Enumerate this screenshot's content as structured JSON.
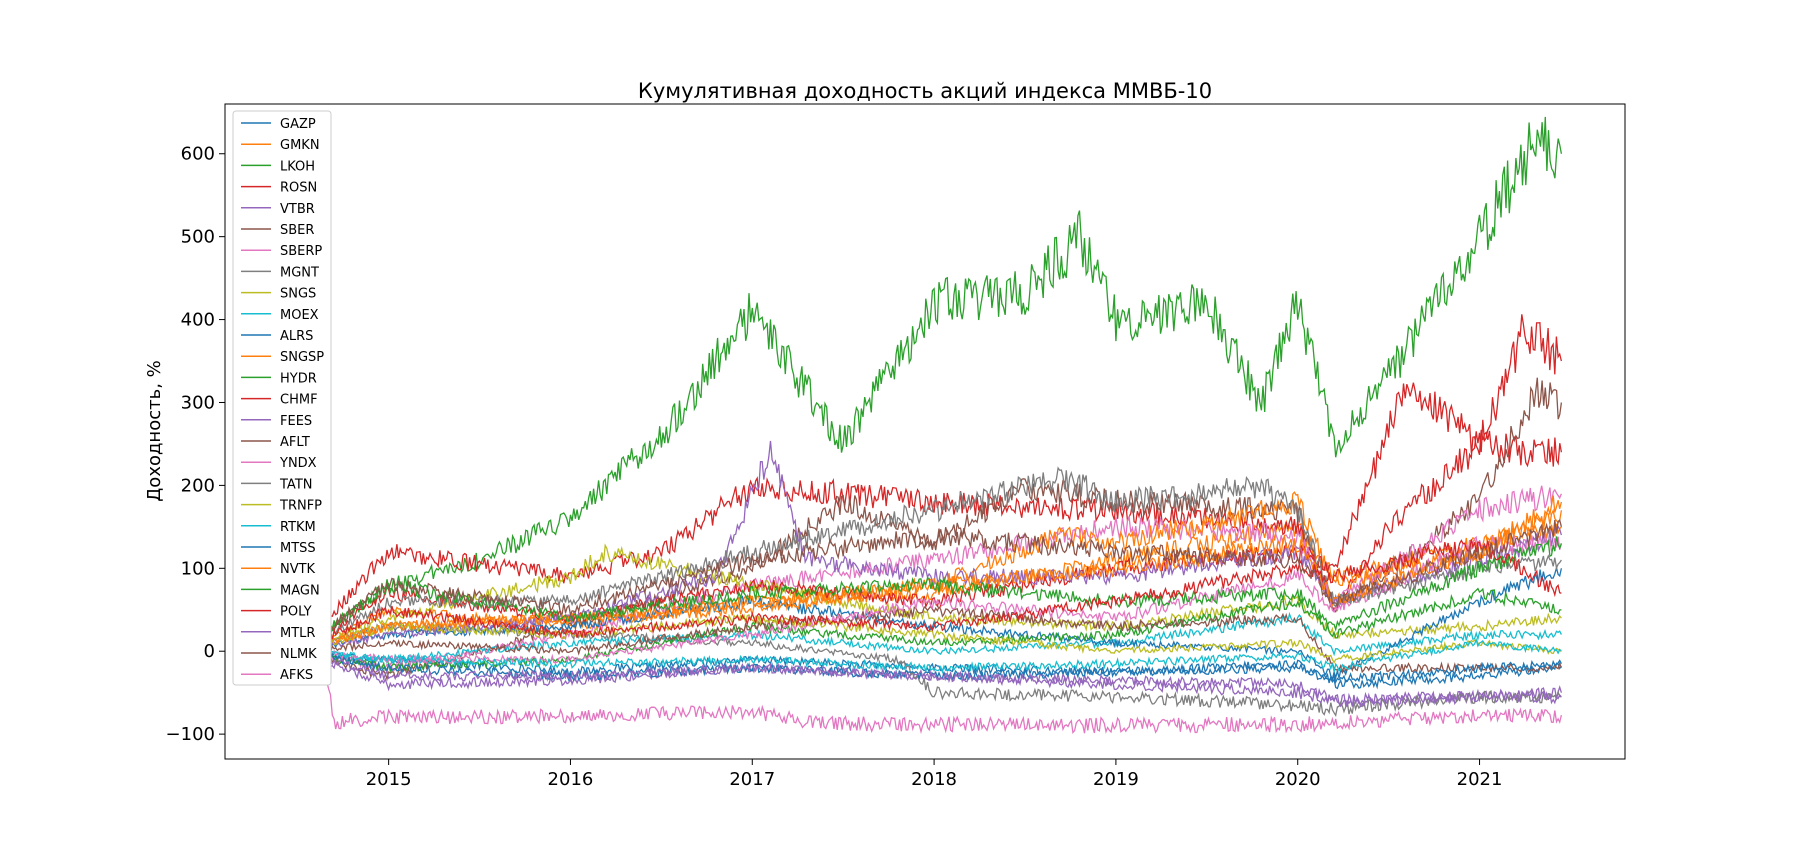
{
  "chart_data": {
    "type": "line",
    "title": "Кумулятивная доходность акций индекса ММВБ-10",
    "xlabel": "",
    "ylabel": "Доходность, %",
    "xlim": [
      2014.1,
      2021.8
    ],
    "ylim": [
      -130,
      660
    ],
    "x_ticks": [
      2015,
      2016,
      2017,
      2018,
      2019,
      2020,
      2021
    ],
    "x_tick_labels": [
      "2015",
      "2016",
      "2017",
      "2018",
      "2019",
      "2020",
      "2021"
    ],
    "y_ticks": [
      -100,
      0,
      100,
      200,
      300,
      400,
      500,
      600
    ],
    "y_tick_labels": [
      "−100",
      "0",
      "100",
      "200",
      "300",
      "400",
      "500",
      "600"
    ],
    "grid": false,
    "legend_position": "upper-left",
    "series": [
      {
        "name": "GAZP",
        "color": "#1f77b4",
        "x": [
          2014.5,
          2015.0,
          2016.0,
          2017.0,
          2018.0,
          2019.0,
          2020.0,
          2020.2,
          2021.0,
          2021.45
        ],
        "y": [
          0,
          -10,
          -25,
          -10,
          -20,
          -25,
          -15,
          -40,
          -30,
          -18
        ]
      },
      {
        "name": "GMKN",
        "color": "#ff7f0e",
        "x": [
          2014.5,
          2015.0,
          2016.0,
          2017.0,
          2018.0,
          2019.0,
          2020.0,
          2020.2,
          2021.0,
          2021.45
        ],
        "y": [
          0,
          50,
          30,
          60,
          70,
          110,
          150,
          90,
          130,
          150
        ]
      },
      {
        "name": "LKOH",
        "color": "#2ca02c",
        "x": [
          2014.5,
          2015.0,
          2015.5,
          2016.0,
          2016.5,
          2017.0,
          2017.5,
          2018.0,
          2018.5,
          2018.8,
          2019.0,
          2019.5,
          2019.8,
          2020.0,
          2020.2,
          2020.5,
          2021.0,
          2021.3,
          2021.45
        ],
        "y": [
          0,
          80,
          110,
          160,
          260,
          410,
          250,
          420,
          430,
          500,
          400,
          420,
          300,
          420,
          250,
          330,
          500,
          620,
          600
        ]
      },
      {
        "name": "ROSN",
        "color": "#d62728",
        "x": [
          2014.5,
          2015.0,
          2016.0,
          2016.5,
          2017.0,
          2018.0,
          2019.0,
          2020.0,
          2020.2,
          2020.5,
          2021.0,
          2021.3,
          2021.45
        ],
        "y": [
          0,
          120,
          90,
          120,
          200,
          180,
          170,
          150,
          50,
          150,
          250,
          240,
          240
        ]
      },
      {
        "name": "VTBR",
        "color": "#9467bd",
        "x": [
          2014.5,
          2015.0,
          2016.0,
          2017.0,
          2018.0,
          2019.0,
          2020.0,
          2020.2,
          2021.0,
          2021.45
        ],
        "y": [
          0,
          -40,
          -35,
          -20,
          -30,
          -35,
          -40,
          -60,
          -55,
          -50
        ]
      },
      {
        "name": "SBER",
        "color": "#8c564b",
        "x": [
          2014.5,
          2015.0,
          2016.0,
          2017.0,
          2017.5,
          2018.0,
          2018.5,
          2019.0,
          2020.0,
          2020.2,
          2021.0,
          2021.3,
          2021.45
        ],
        "y": [
          0,
          -30,
          30,
          100,
          180,
          130,
          200,
          180,
          170,
          50,
          180,
          310,
          300
        ]
      },
      {
        "name": "SBERP",
        "color": "#e377c2",
        "x": [
          2014.5,
          2015.0,
          2016.0,
          2017.0,
          2018.0,
          2019.0,
          2020.0,
          2020.2,
          2021.0,
          2021.45
        ],
        "y": [
          0,
          -20,
          20,
          80,
          110,
          150,
          140,
          60,
          170,
          190
        ]
      },
      {
        "name": "MGNT",
        "color": "#7f7f7f",
        "x": [
          2014.5,
          2015.0,
          2016.0,
          2017.0,
          2017.8,
          2018.0,
          2019.0,
          2020.0,
          2020.2,
          2021.0,
          2021.45
        ],
        "y": [
          0,
          30,
          20,
          10,
          -10,
          -50,
          -55,
          -65,
          -70,
          -55,
          -55
        ]
      },
      {
        "name": "SNGS",
        "color": "#bcbd22",
        "x": [
          2014.5,
          2015.0,
          2016.0,
          2016.2,
          2017.0,
          2018.0,
          2019.0,
          2020.0,
          2020.2,
          2021.0,
          2021.45
        ],
        "y": [
          0,
          40,
          90,
          120,
          80,
          40,
          30,
          60,
          20,
          30,
          40
        ]
      },
      {
        "name": "MOEX",
        "color": "#17becf",
        "x": [
          2014.5,
          2015.0,
          2016.0,
          2017.0,
          2018.0,
          2019.0,
          2020.0,
          2020.2,
          2021.0,
          2021.45
        ],
        "y": [
          0,
          -10,
          10,
          20,
          0,
          10,
          40,
          0,
          20,
          20
        ]
      },
      {
        "name": "ALRS",
        "color": "#1f77b4",
        "x": [
          2014.5,
          2015.0,
          2016.0,
          2017.0,
          2018.0,
          2019.0,
          2020.0,
          2020.2,
          2021.0,
          2021.45
        ],
        "y": [
          0,
          20,
          30,
          60,
          30,
          10,
          0,
          -30,
          60,
          100
        ]
      },
      {
        "name": "SNGSP",
        "color": "#ff7f0e",
        "x": [
          2014.5,
          2015.0,
          2016.0,
          2017.0,
          2018.0,
          2018.7,
          2019.0,
          2020.0,
          2020.2,
          2021.0,
          2021.45
        ],
        "y": [
          0,
          30,
          40,
          60,
          80,
          140,
          130,
          180,
          80,
          120,
          180
        ]
      },
      {
        "name": "HYDR",
        "color": "#2ca02c",
        "x": [
          2014.5,
          2015.0,
          2016.0,
          2017.0,
          2018.0,
          2019.0,
          2020.0,
          2020.2,
          2021.0,
          2021.45
        ],
        "y": [
          0,
          -20,
          -10,
          30,
          10,
          20,
          60,
          20,
          70,
          50
        ]
      },
      {
        "name": "CHMF",
        "color": "#d62728",
        "x": [
          2014.5,
          2015.0,
          2016.0,
          2017.0,
          2018.0,
          2019.0,
          2020.0,
          2020.2,
          2020.6,
          2021.0,
          2021.25,
          2021.45
        ],
        "y": [
          0,
          70,
          40,
          80,
          60,
          100,
          120,
          100,
          320,
          250,
          390,
          350
        ]
      },
      {
        "name": "FEES",
        "color": "#9467bd",
        "x": [
          2014.5,
          2015.0,
          2016.0,
          2016.8,
          2017.1,
          2017.3,
          2018.0,
          2019.0,
          2020.0,
          2020.2,
          2021.0,
          2021.45
        ],
        "y": [
          0,
          20,
          40,
          90,
          240,
          110,
          90,
          90,
          120,
          60,
          110,
          140
        ]
      },
      {
        "name": "AFLT",
        "color": "#8c564b",
        "x": [
          2014.5,
          2015.0,
          2016.0,
          2017.0,
          2018.0,
          2019.0,
          2020.0,
          2020.2,
          2021.0,
          2021.45
        ],
        "y": [
          0,
          10,
          0,
          30,
          50,
          30,
          40,
          -20,
          -20,
          -20
        ]
      },
      {
        "name": "YNDX",
        "color": "#e377c2",
        "x": [
          2014.5,
          2015.0,
          2016.0,
          2017.0,
          2018.0,
          2019.0,
          2020.0,
          2020.2,
          2021.0,
          2021.45
        ],
        "y": [
          0,
          -10,
          -10,
          20,
          60,
          40,
          90,
          50,
          130,
          130
        ]
      },
      {
        "name": "TATN",
        "color": "#7f7f7f",
        "x": [
          2014.5,
          2015.0,
          2016.0,
          2017.0,
          2018.0,
          2018.7,
          2019.0,
          2019.8,
          2020.0,
          2020.2,
          2021.0,
          2021.45
        ],
        "y": [
          0,
          60,
          60,
          120,
          170,
          210,
          180,
          200,
          170,
          60,
          100,
          110
        ]
      },
      {
        "name": "TRNFP",
        "color": "#bcbd22",
        "x": [
          2014.5,
          2015.0,
          2016.0,
          2017.0,
          2018.0,
          2019.0,
          2020.0,
          2020.2,
          2021.0,
          2021.45
        ],
        "y": [
          0,
          30,
          20,
          40,
          20,
          0,
          10,
          -10,
          10,
          0
        ]
      },
      {
        "name": "RTKM",
        "color": "#17becf",
        "x": [
          2014.5,
          2015.0,
          2016.0,
          2017.0,
          2018.0,
          2019.0,
          2020.0,
          2020.2,
          2021.0,
          2021.45
        ],
        "y": [
          0,
          -10,
          -15,
          -10,
          -20,
          -15,
          -5,
          -20,
          10,
          0
        ]
      },
      {
        "name": "MTSS",
        "color": "#1f77b4",
        "x": [
          2014.5,
          2015.0,
          2016.0,
          2017.0,
          2018.0,
          2019.0,
          2020.0,
          2020.2,
          2021.0,
          2021.45
        ],
        "y": [
          0,
          -20,
          -30,
          -20,
          -30,
          -25,
          -20,
          -35,
          -20,
          -15
        ]
      },
      {
        "name": "NVTK",
        "color": "#ff7f0e",
        "x": [
          2014.5,
          2015.0,
          2016.0,
          2017.0,
          2018.0,
          2019.0,
          2020.0,
          2020.2,
          2021.0,
          2021.45
        ],
        "y": [
          0,
          30,
          40,
          50,
          80,
          100,
          130,
          60,
          120,
          170
        ]
      },
      {
        "name": "MAGN",
        "color": "#2ca02c",
        "x": [
          2014.5,
          2015.0,
          2016.0,
          2017.0,
          2018.0,
          2019.0,
          2020.0,
          2020.2,
          2021.0,
          2021.45
        ],
        "y": [
          0,
          80,
          40,
          70,
          80,
          60,
          70,
          30,
          100,
          130
        ]
      },
      {
        "name": "POLY",
        "color": "#d62728",
        "x": [
          2014.5,
          2015.0,
          2016.0,
          2017.0,
          2018.0,
          2019.0,
          2020.0,
          2020.2,
          2021.0,
          2021.45
        ],
        "y": [
          0,
          50,
          20,
          40,
          30,
          60,
          100,
          90,
          130,
          70
        ]
      },
      {
        "name": "MTLR",
        "color": "#9467bd",
        "x": [
          2014.5,
          2015.0,
          2016.0,
          2017.0,
          2018.0,
          2019.0,
          2020.0,
          2020.2,
          2021.0,
          2021.45
        ],
        "y": [
          0,
          -30,
          -30,
          -20,
          -30,
          -40,
          -50,
          -60,
          -55,
          -55
        ]
      },
      {
        "name": "NLMK",
        "color": "#8c564b",
        "x": [
          2014.5,
          2015.0,
          2016.0,
          2017.0,
          2018.0,
          2019.0,
          2020.0,
          2020.2,
          2021.0,
          2021.45
        ],
        "y": [
          0,
          80,
          50,
          110,
          140,
          120,
          110,
          60,
          120,
          150
        ]
      },
      {
        "name": "AFKS",
        "color": "#e377c2",
        "x": [
          2014.5,
          2014.65,
          2014.7,
          2015.0,
          2016.0,
          2017.0,
          2017.35,
          2018.0,
          2019.0,
          2020.0,
          2021.0,
          2021.45
        ],
        "y": [
          0,
          -20,
          -85,
          -80,
          -78,
          -73,
          -88,
          -88,
          -90,
          -88,
          -78,
          -77
        ]
      }
    ]
  }
}
